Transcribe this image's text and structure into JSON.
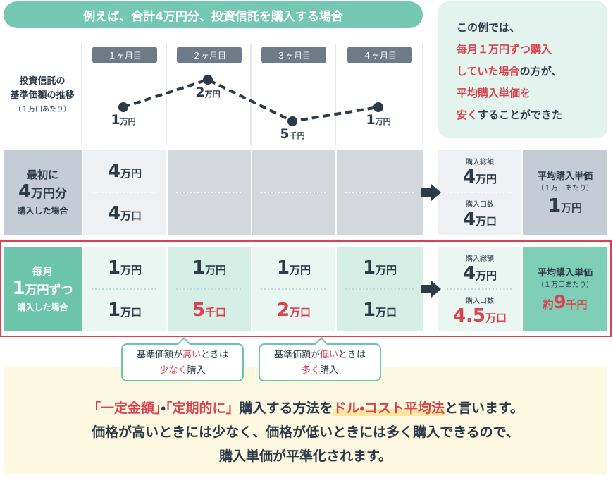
{
  "header": {
    "title": "例えば、合計4万円分、投資信託を購入する場合"
  },
  "callout": {
    "lines": [
      [
        {
          "text": "この例では、"
        }
      ],
      [
        {
          "text": "毎月１万円ずつ購入",
          "color": "#d9434f"
        }
      ],
      [
        {
          "text": "していた場合",
          "color": "#d9434f"
        },
        {
          "text": "の方が、"
        }
      ],
      [
        {
          "text": "平均購入単価を",
          "color": "#d9434f"
        }
      ],
      [
        {
          "text": "安く",
          "color": "#d9434f"
        },
        {
          "text": "することができた"
        }
      ]
    ]
  },
  "chart": {
    "label": [
      "投資信託の",
      "基準価額の推移"
    ],
    "note": "（１万口あたり）",
    "months": [
      "１ヶ月目",
      "２ヶ月目",
      "３ヶ月目",
      "４ヶ月目"
    ],
    "prices": [
      {
        "number": "1",
        "unit": "万円"
      },
      {
        "number": "2",
        "unit": "万円"
      },
      {
        "number": "5",
        "unit": "千円"
      },
      {
        "number": "1",
        "unit": "万円"
      }
    ],
    "line_color": "#2d3a48"
  },
  "rows": [
    {
      "label": {
        "top": "最初に",
        "number": "4",
        "unit": "万円分",
        "bottom": "購入した場合"
      },
      "cells": [
        {
          "amount": {
            "number": "4",
            "unit": "万円"
          },
          "units": {
            "number": "4",
            "unit": "万口"
          }
        },
        null,
        null,
        null
      ],
      "totals": {
        "amount_label": "購入総額",
        "amount": {
          "number": "4",
          "unit": "万円"
        },
        "units_label": "購入口数",
        "units": {
          "number": "4",
          "unit": "万口"
        }
      },
      "average": {
        "label": "平均購入単価",
        "note": "（１万口あたり）",
        "value": {
          "number": "1",
          "unit": "万円"
        }
      }
    },
    {
      "label": {
        "top": "毎月",
        "number": "1",
        "unit": "万円ずつ",
        "bottom": "購入した場合"
      },
      "cells": [
        {
          "amount": {
            "number": "1",
            "unit": "万円"
          },
          "units": {
            "number": "1",
            "unit": "万口"
          }
        },
        {
          "amount": {
            "number": "1",
            "unit": "万円"
          },
          "units": {
            "number": "5",
            "unit": "千口",
            "color": "#d9434f"
          }
        },
        {
          "amount": {
            "number": "1",
            "unit": "万円"
          },
          "units": {
            "number": "2",
            "unit": "万口",
            "color": "#d9434f"
          }
        },
        {
          "amount": {
            "number": "1",
            "unit": "万円"
          },
          "units": {
            "number": "1",
            "unit": "万口"
          }
        }
      ],
      "totals": {
        "amount_label": "購入総額",
        "amount": {
          "number": "4",
          "unit": "万円"
        },
        "units_label": "購入口数",
        "units": {
          "number": "4.5",
          "unit": "万口",
          "color": "#d9434f"
        }
      },
      "average": {
        "label": "平均購入単価",
        "note": "（１万口あたり）",
        "value": {
          "prefix": "約",
          "number": "9",
          "unit": "千円",
          "color": "#d9434f"
        }
      }
    }
  ],
  "bubbles": [
    {
      "lines": [
        [
          {
            "text": "基準価額が"
          },
          {
            "text": "高い",
            "color": "#d9434f"
          },
          {
            "text": "ときは"
          }
        ],
        [
          {
            "text": "少なく",
            "color": "#d9434f"
          },
          {
            "text": "購入"
          }
        ]
      ]
    },
    {
      "lines": [
        [
          {
            "text": "基準価額が"
          },
          {
            "text": "低い",
            "color": "#d9434f"
          },
          {
            "text": "ときは"
          }
        ],
        [
          {
            "text": "多く",
            "color": "#d9434f"
          },
          {
            "text": "購入"
          }
        ]
      ]
    }
  ],
  "summary": {
    "lines": [
      [
        {
          "text": "「一定金額」",
          "color": "#d9434f"
        },
        {
          "text": "・"
        },
        {
          "text": "「定期的に」",
          "color": "#d9434f"
        },
        {
          "text": "購入する方法を"
        },
        {
          "text": "ドル・コスト平均法",
          "color": "#d9434f",
          "highlight": "#fbe6a2"
        },
        {
          "text": "と言います。"
        }
      ],
      [
        {
          "text": "価格が高いときには少なく、価格が低いときには多く購入できるので、"
        }
      ],
      [
        {
          "text": "購入単価が平準化されます。"
        }
      ]
    ]
  }
}
